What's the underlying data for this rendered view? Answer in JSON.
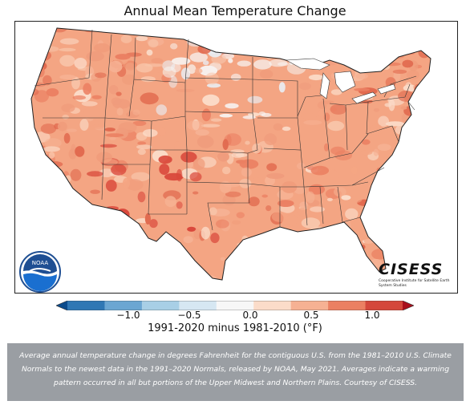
{
  "title": "Annual Mean Temperature Change",
  "colors": {
    "ramp": [
      "#0b4b8c",
      "#2f77b4",
      "#6ba6d2",
      "#a8cfe6",
      "#d6e7f2",
      "#f7f7f7",
      "#fbdcc9",
      "#f6b193",
      "#eb8062",
      "#d4473b",
      "#a8101c"
    ],
    "cold_spot": "#f1f3f6",
    "hot_spot": "#d9473a",
    "land_base": "#f4a583"
  },
  "legend": {
    "ticks": [
      "−1.0",
      "−0.5",
      "0.0",
      "0.5",
      "1.0"
    ],
    "tick_values": [
      -1.0,
      -0.5,
      0.0,
      0.5,
      1.0
    ],
    "range": [
      -1.5,
      1.25
    ],
    "label": "1991-2020 minus 1981-2010 (°F)"
  },
  "logos": {
    "noaa": "NOAA",
    "cisess_name": "CISESS",
    "cisess_sub": "Cooperative Institute for Satellite Earth System Studies"
  },
  "caption": "Average annual temperature change in degrees Fahrenheit for the contiguous U.S. from the 1981–2010 U.S. Climate Normals to the newest data in the 1991–2020 Normals, released by NOAA, May 2021. Averages indicate a warming pattern occurred in all but portions of the Upper Midwest and Northern Plains. Courtesy of CISESS."
}
